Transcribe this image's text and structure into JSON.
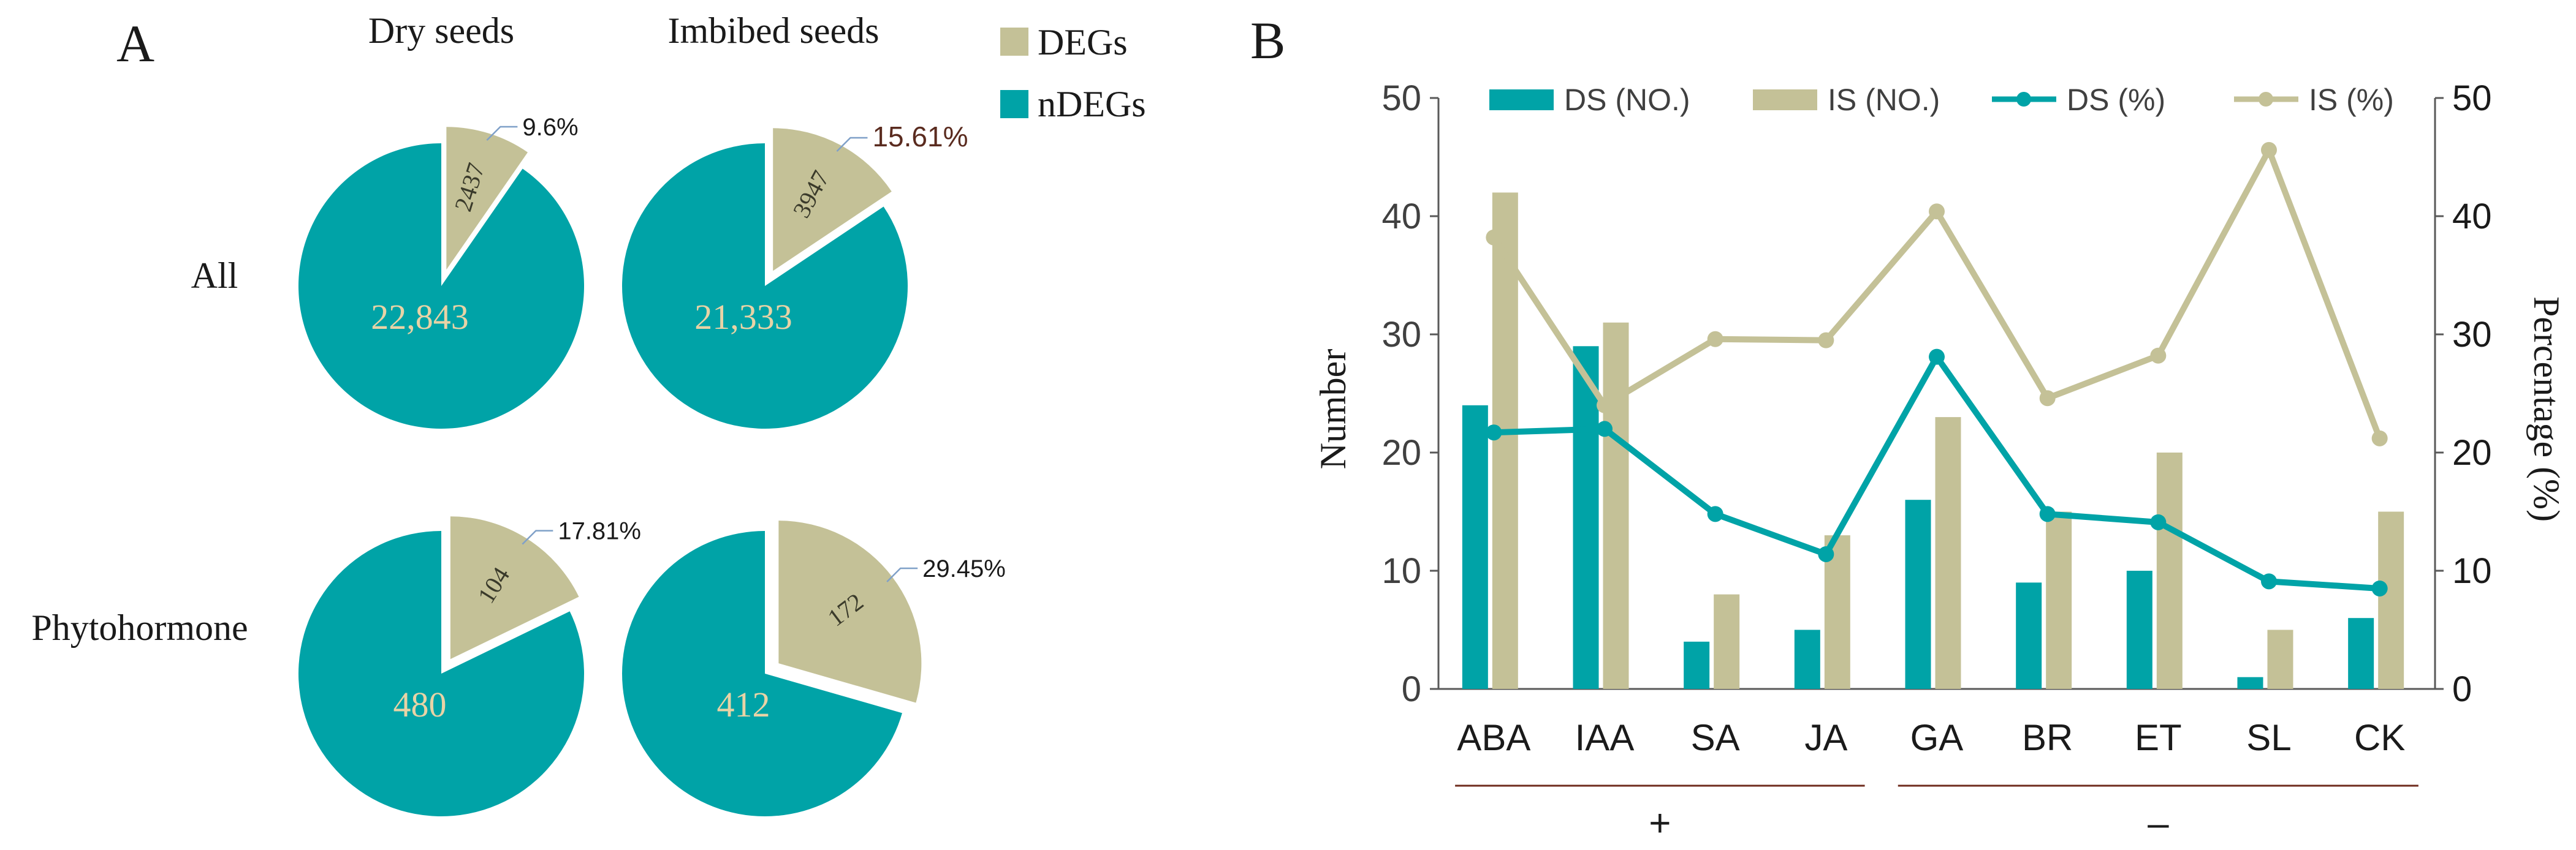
{
  "colors": {
    "teal": "#00a3a7",
    "khaki": "#c4c197",
    "text": "#1a1a1a",
    "pie_label": "#e8d3a6",
    "leader": "#7fa0c8",
    "pct_highlight": "#5a2b1f",
    "bracket": "#6e2b1c",
    "axis": "#595959"
  },
  "panel_a": {
    "letter": "A",
    "col_titles": [
      "Dry seeds",
      "Imbibed seeds"
    ],
    "row_labels": [
      "All",
      "Phytohormone"
    ],
    "legend": [
      {
        "label": "DEGs",
        "color": "#c4c197"
      },
      {
        "label": "nDEGs",
        "color": "#00a3a7"
      }
    ]
  },
  "chart_data": [
    {
      "type": "pie",
      "title": "All – Dry seeds",
      "slices": [
        {
          "name": "DEGs",
          "value": 2437,
          "label": "2437",
          "percent_label": "9.6%"
        },
        {
          "name": "nDEGs",
          "value": 22843,
          "label": "22,843"
        }
      ]
    },
    {
      "type": "pie",
      "title": "All – Imbibed seeds",
      "slices": [
        {
          "name": "DEGs",
          "value": 3947,
          "label": "3947",
          "percent_label": "15.61%"
        },
        {
          "name": "nDEGs",
          "value": 21333,
          "label": "21,333"
        }
      ]
    },
    {
      "type": "pie",
      "title": "Phytohormone – Dry seeds",
      "slices": [
        {
          "name": "DEGs",
          "value": 104,
          "label": "104",
          "percent_label": "17.81%"
        },
        {
          "name": "nDEGs",
          "value": 480,
          "label": "480"
        }
      ]
    },
    {
      "type": "pie",
      "title": "Phytohormone – Imbibed seeds",
      "slices": [
        {
          "name": "DEGs",
          "value": 172,
          "label": "172",
          "percent_label": "29.45%"
        },
        {
          "name": "nDEGs",
          "value": 412,
          "label": "412"
        }
      ]
    },
    {
      "type": "bar",
      "panel_letter": "B",
      "categories": [
        "ABA",
        "IAA",
        "SA",
        "JA",
        "GA",
        "BR",
        "ET",
        "SL",
        "CK"
      ],
      "series": [
        {
          "name": "DS (NO.)",
          "kind": "bar",
          "axis": "left",
          "color": "#00a3a7",
          "values": [
            24,
            29,
            4,
            5,
            16,
            9,
            10,
            1,
            6
          ]
        },
        {
          "name": "IS (NO.)",
          "kind": "bar",
          "axis": "left",
          "color": "#c4c197",
          "values": [
            42,
            31,
            8,
            13,
            23,
            15,
            20,
            5,
            15
          ]
        },
        {
          "name": "DS (%)",
          "kind": "line",
          "axis": "right",
          "color": "#00a3a7",
          "values": [
            21.7,
            22.0,
            14.8,
            11.4,
            28.1,
            14.8,
            14.1,
            9.1,
            8.5
          ]
        },
        {
          "name": "IS (%)",
          "kind": "line",
          "axis": "right",
          "color": "#c4c197",
          "values": [
            38.2,
            24.0,
            29.6,
            29.5,
            40.4,
            24.6,
            28.2,
            45.6,
            21.2
          ]
        }
      ],
      "ylabel": "Number",
      "y2label": "Percentage (%)",
      "ylim": [
        0,
        50
      ],
      "y2lim": [
        0,
        50
      ],
      "yticks": [
        "0",
        "10",
        "20",
        "30",
        "40",
        "50"
      ],
      "y2ticks": [
        "0",
        "10",
        "20",
        "30",
        "40",
        "50"
      ],
      "groups": [
        {
          "label": "+",
          "categories": [
            "ABA",
            "IAA",
            "SA",
            "JA"
          ]
        },
        {
          "label": "–",
          "categories": [
            "GA",
            "BR",
            "ET",
            "SL",
            "CK"
          ]
        }
      ],
      "legend_position": "top"
    }
  ]
}
